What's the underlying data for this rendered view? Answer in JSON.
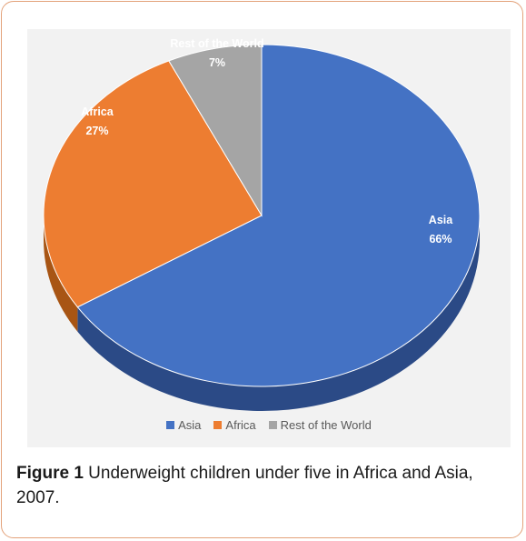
{
  "chart_data": {
    "type": "pie",
    "title": "",
    "categories": [
      "Asia",
      "Africa",
      "Rest of the World"
    ],
    "values": [
      66,
      27,
      7
    ],
    "value_labels": [
      "66%",
      "27%",
      "7%"
    ],
    "colors": [
      "#4472c4",
      "#ed7d31",
      "#a5a5a5"
    ],
    "side_colors": [
      "#2b4a86",
      "#a85514",
      "#6f6f6f"
    ],
    "legend": [
      "Asia",
      "Africa",
      "Rest of the World"
    ],
    "legend_position": "bottom",
    "style": "3d"
  },
  "caption": {
    "label": "Figure 1",
    "text": " Underweight children under five in Africa and Asia, 2007."
  }
}
